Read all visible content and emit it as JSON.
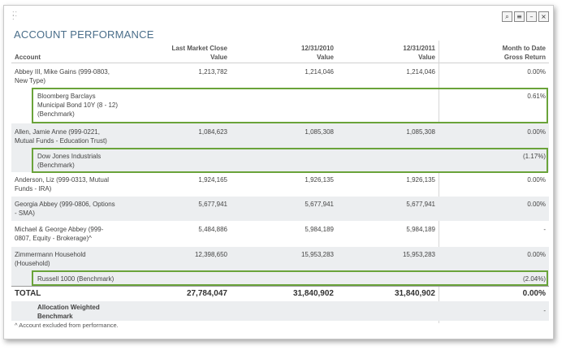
{
  "window": {
    "title": "ACCOUNT PERFORMANCE",
    "toolbar": [
      {
        "name": "search-icon",
        "glyph": "⌕"
      },
      {
        "name": "menu-icon",
        "glyph": "≡"
      },
      {
        "name": "minimize-icon",
        "glyph": "–"
      },
      {
        "name": "close-icon",
        "glyph": "×"
      }
    ]
  },
  "table": {
    "headers": {
      "account": "Account",
      "col1": [
        "Last Market Close",
        "Value"
      ],
      "col2": [
        "12/31/2010",
        "Value"
      ],
      "col3": [
        "12/31/2011",
        "Value"
      ],
      "col4": [
        "Month to Date",
        "Gross Return"
      ]
    },
    "rows": [
      {
        "name": [
          "Abbey III, Mike Gains (999-0803,",
          "New Type)"
        ],
        "v1": "1,213,782",
        "v2": "1,214,046",
        "v3": "1,214,046",
        "ret": "0.00%"
      },
      {
        "name": [
          "Bloomberg Barclays",
          "Municipal Bond 10Y (8 - 12)",
          "(Benchmark)"
        ],
        "v1": "",
        "v2": "",
        "v3": "",
        "ret": "0.61%"
      },
      {
        "name": [
          "Allen, Jamie Anne (999-0221,",
          "Mutual Funds - Education Trust)"
        ],
        "v1": "1,084,623",
        "v2": "1,085,308",
        "v3": "1,085,308",
        "ret": "0.00%"
      },
      {
        "name": [
          "Dow Jones Industrials",
          "(Benchmark)"
        ],
        "v1": "",
        "v2": "",
        "v3": "",
        "ret": "(1.17%)"
      },
      {
        "name": [
          "Anderson, Liz (999-0313, Mutual",
          "Funds - IRA)"
        ],
        "v1": "1,924,165",
        "v2": "1,926,135",
        "v3": "1,926,135",
        "ret": "0.00%"
      },
      {
        "name": [
          "Georgia Abbey (999-0806, Options",
          "- SMA)"
        ],
        "v1": "5,677,941",
        "v2": "5,677,941",
        "v3": "5,677,941",
        "ret": "0.00%"
      },
      {
        "name": [
          "Michael & George Abbey (999-",
          "0807, Equity - Brokerage)^"
        ],
        "v1": "5,484,886",
        "v2": "5,984,189",
        "v3": "5,984,189",
        "ret": "-"
      },
      {
        "name": [
          "Zimmermann Household",
          "(Household)"
        ],
        "v1": "12,398,650",
        "v2": "15,953,283",
        "v3": "15,953,283",
        "ret": "0.00%"
      },
      {
        "name": [
          "Russell 1000 (Benchmark)"
        ],
        "v1": "",
        "v2": "",
        "v3": "",
        "ret": "(2.04%)"
      }
    ],
    "total": {
      "label": "TOTAL",
      "v1": "27,784,047",
      "v2": "31,840,902",
      "v3": "31,840,902",
      "ret": "0.00%"
    },
    "allocation": {
      "label": [
        "Allocation Weighted",
        "Benchmark"
      ],
      "ret": "-"
    }
  },
  "footnote": "^ Account excluded from performance.",
  "colors": {
    "title": "#4a6e8a",
    "highlight": "#6aa33a",
    "alt_row": "#eceef0"
  }
}
